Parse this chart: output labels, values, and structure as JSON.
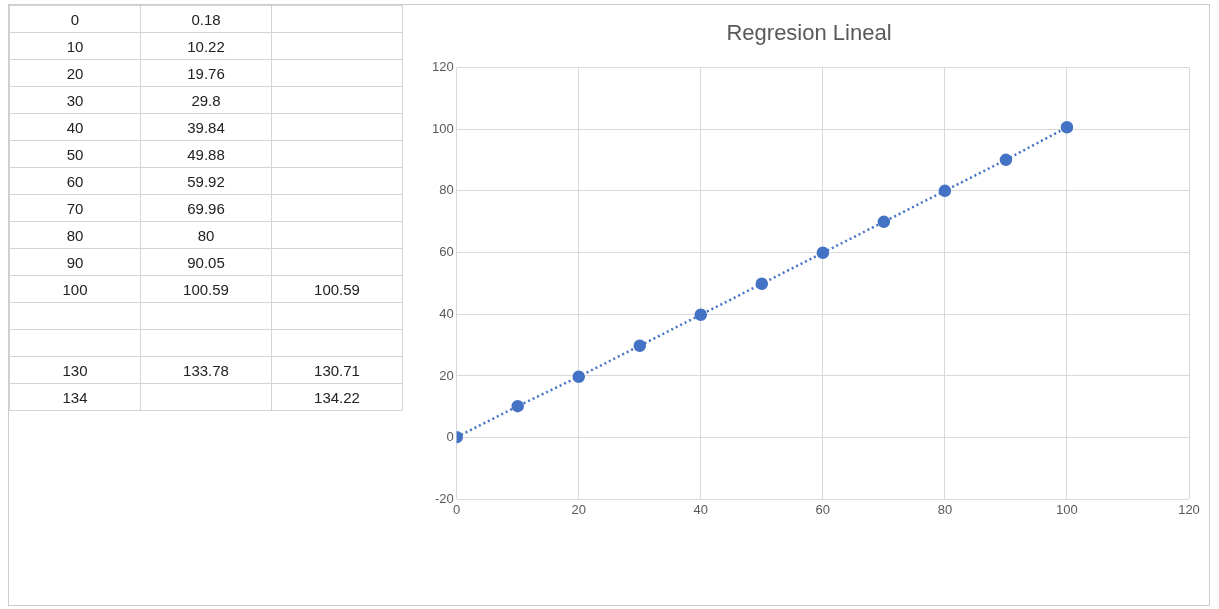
{
  "chart_data": [
    {
      "type": "other",
      "cell_labels": [
        [
          "0",
          "0.18",
          null
        ],
        [
          "10",
          "10.22",
          null
        ],
        [
          "20",
          "19.76",
          null
        ],
        [
          "30",
          "29.8",
          null
        ],
        [
          "40",
          "39.84",
          null
        ],
        [
          "50",
          "49.88",
          null
        ],
        [
          "60",
          "59.92",
          null
        ],
        [
          "70",
          "69.96",
          null
        ],
        [
          "80",
          "80",
          null
        ],
        [
          "90",
          "90.05",
          null
        ],
        [
          "100",
          "100.59",
          "100.59"
        ],
        [
          null,
          null,
          null
        ],
        [
          null,
          null,
          null
        ],
        [
          "130",
          "133.78",
          "130.71"
        ],
        [
          "134",
          null,
          "134.22"
        ]
      ]
    },
    {
      "type": "line",
      "title": "Regresion Lineal",
      "x": [
        0,
        10,
        20,
        30,
        40,
        50,
        60,
        70,
        80,
        90,
        100
      ],
      "series": [
        {
          "color": "#4472c4",
          "values": [
            0.18,
            10.22,
            19.76,
            29.8,
            39.84,
            49.88,
            59.92,
            69.96,
            80,
            90.05,
            100.59
          ]
        }
      ],
      "xlim": [
        0,
        120
      ],
      "xticks": [
        0,
        20,
        40,
        60,
        80,
        100,
        120
      ],
      "ylim": [
        -20,
        120
      ],
      "yticks": [
        -20,
        0,
        20,
        40,
        60,
        80,
        100,
        120
      ],
      "grid": true,
      "legend": false,
      "marker": "circle",
      "line_style": "dotted"
    }
  ]
}
